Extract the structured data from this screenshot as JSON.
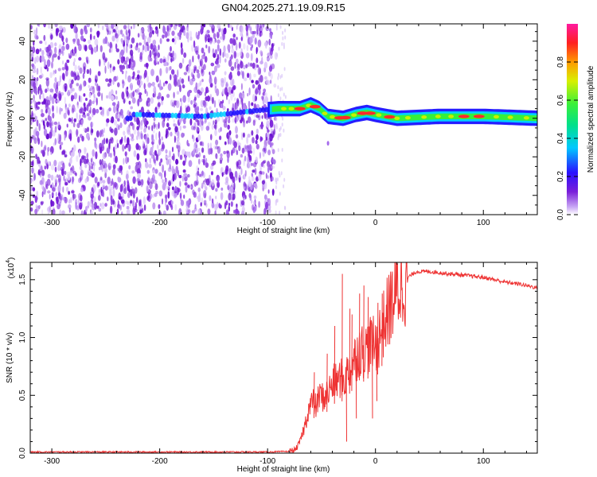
{
  "figure": {
    "title": "GN04.2025.271.19.09.R15"
  },
  "chart_data": [
    {
      "type": "heatmap",
      "xlabel": "Height of straight line (km)",
      "ylabel": "Frequency (Hz)",
      "xlim": [
        -320,
        150
      ],
      "ylim": [
        -50,
        49
      ],
      "x_ticks": [
        -300,
        -200,
        -100,
        0,
        100
      ],
      "y_ticks": [
        -40,
        -20,
        0,
        20,
        40
      ],
      "grid": false,
      "colorbar": {
        "label": "Normalized spectral amplitude",
        "range": [
          0,
          1
        ],
        "ticks": [
          "0.0",
          "0.2",
          "0.4",
          "0.6",
          "0.8"
        ],
        "colormap": "rainbow (purple-blue-cyan-green-yellow-orange-red-magenta)"
      },
      "noise_region": {
        "x": [
          -320,
          -92
        ],
        "y": [
          -50,
          49
        ],
        "color": "#7a1fd9"
      },
      "signal_band": {
        "center_hz": [
          {
            "x": -225,
            "y": 2
          },
          {
            "x": -160,
            "y": 1
          },
          {
            "x": -110,
            "y": 4
          },
          {
            "x": -90,
            "y": 5
          },
          {
            "x": -70,
            "y": 5
          },
          {
            "x": -60,
            "y": 7
          },
          {
            "x": -52,
            "y": 5
          },
          {
            "x": -44,
            "y": 1
          },
          {
            "x": -30,
            "y": 0
          },
          {
            "x": -18,
            "y": 2
          },
          {
            "x": -8,
            "y": 3
          },
          {
            "x": 0,
            "y": 2
          },
          {
            "x": 20,
            "y": 0
          },
          {
            "x": 60,
            "y": 1
          },
          {
            "x": 100,
            "y": 1
          },
          {
            "x": 150,
            "y": 0
          }
        ],
        "halfwidth_hz": 4,
        "colors": [
          "#1a10ff",
          "#00d0ff",
          "#36f03a",
          "#c8f000",
          "#ff2a2a"
        ]
      }
    },
    {
      "type": "line",
      "xlabel": "Height of straight line (km)",
      "ylabel": "SNR (10 * v/v)",
      "y_multiplier": "(x10",
      "y_multiplier_exp": "4",
      "xlim": [
        -320,
        150
      ],
      "ylim": [
        0,
        1.65
      ],
      "x_ticks": [
        -300,
        -200,
        -100,
        0,
        100
      ],
      "y_ticks": [
        0.0,
        0.5,
        1.0,
        1.5
      ],
      "grid": false,
      "series": [
        {
          "color": "#ee3333",
          "points": [
            [
              -320,
              0.01
            ],
            [
              -250,
              0.01
            ],
            [
              -200,
              0.01
            ],
            [
              -150,
              0.01
            ],
            [
              -100,
              0.01
            ],
            [
              -80,
              0.015
            ],
            [
              -74,
              0.03
            ],
            [
              -70,
              0.1
            ],
            [
              -66,
              0.22
            ],
            [
              -62,
              0.38
            ],
            [
              -58,
              0.45
            ],
            [
              -55,
              0.4
            ],
            [
              -52,
              0.5
            ],
            [
              -48,
              0.48
            ],
            [
              -44,
              0.52
            ],
            [
              -40,
              0.6
            ],
            [
              -36,
              0.62
            ],
            [
              -32,
              0.65
            ],
            [
              -29,
              0.62
            ],
            [
              -25,
              0.72
            ],
            [
              -20,
              0.8
            ],
            [
              -15,
              0.9
            ],
            [
              -10,
              0.88
            ],
            [
              -5,
              0.95
            ],
            [
              0,
              0.92
            ],
            [
              5,
              1.05
            ],
            [
              10,
              1.18
            ],
            [
              15,
              1.3
            ],
            [
              20,
              1.4
            ],
            [
              25,
              1.46
            ],
            [
              30,
              1.52
            ],
            [
              38,
              1.57
            ],
            [
              50,
              1.57
            ],
            [
              60,
              1.56
            ],
            [
              80,
              1.54
            ],
            [
              100,
              1.52
            ],
            [
              120,
              1.48
            ],
            [
              135,
              1.46
            ],
            [
              150,
              1.43
            ]
          ],
          "spikes": [
            [
              -57,
              0.7
            ],
            [
              -45,
              0.86
            ],
            [
              -38,
              1.1
            ],
            [
              -31,
              1.55
            ],
            [
              -24,
              1.25
            ],
            [
              -22,
              1.2
            ],
            [
              -15,
              1.38
            ],
            [
              -11,
              1.45
            ],
            [
              -7,
              1.35
            ],
            [
              2,
              1.3
            ],
            [
              6,
              1.38
            ]
          ],
          "dips": [
            [
              -3,
              0.3
            ],
            [
              1,
              0.45
            ],
            [
              -27,
              0.1
            ],
            [
              -18,
              0.3
            ]
          ]
        }
      ]
    }
  ]
}
